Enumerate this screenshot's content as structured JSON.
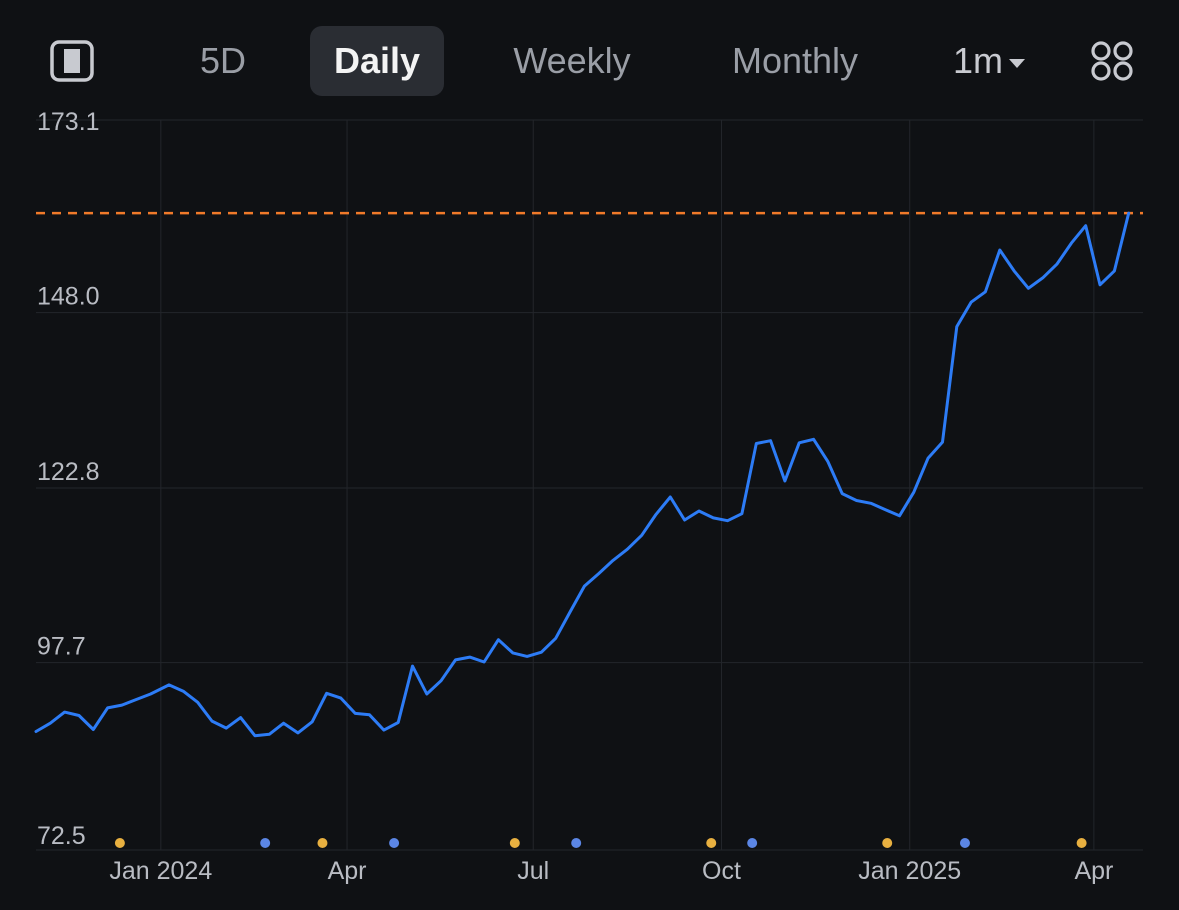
{
  "toolbar": {
    "panel_icon": "split-panel-icon",
    "tabs": [
      {
        "label": "5D",
        "active": false
      },
      {
        "label": "Daily",
        "active": true
      },
      {
        "label": "Weekly",
        "active": false
      },
      {
        "label": "Monthly",
        "active": false
      }
    ],
    "range": {
      "label": "1m"
    },
    "grid_icon": "four-circles-grid-icon"
  },
  "colors": {
    "background": "#0f1114",
    "line": "#2d7cf6",
    "reference_line": "#f07a2a",
    "grid": "#23262b",
    "dividend_dot": "#e8b040",
    "earnings_dot": "#5b86e5"
  },
  "chart_data": {
    "type": "line",
    "title": "",
    "xlabel": "",
    "ylabel": "",
    "x_ticks": [
      "Jan 2024",
      "Apr",
      "Jul",
      "Oct",
      "Jan 2025",
      "Apr"
    ],
    "x_tick_dates": [
      "2024-01-01",
      "2024-04-01",
      "2024-07-01",
      "2024-10-01",
      "2025-01-01",
      "2025-04-01"
    ],
    "xlim": [
      "2023-11-01",
      "2025-04-25"
    ],
    "y_ticks": [
      "173.1",
      "148.0",
      "122.8",
      "97.7",
      "72.5"
    ],
    "ylim": [
      72.5,
      173.1
    ],
    "grid": true,
    "reference_line": {
      "value": 162.3,
      "style": "dashed"
    },
    "series": [
      {
        "points": [
          [
            "2023-11-01",
            87.8
          ],
          [
            "2023-11-08",
            89.0
          ],
          [
            "2023-11-15",
            90.6
          ],
          [
            "2023-11-22",
            90.1
          ],
          [
            "2023-11-29",
            88.1
          ],
          [
            "2023-12-06",
            91.2
          ],
          [
            "2023-12-13",
            91.6
          ],
          [
            "2023-12-20",
            92.4
          ],
          [
            "2023-12-27",
            93.2
          ],
          [
            "2024-01-05",
            94.5
          ],
          [
            "2024-01-12",
            93.6
          ],
          [
            "2024-01-19",
            92.0
          ],
          [
            "2024-01-26",
            89.3
          ],
          [
            "2024-02-02",
            88.3
          ],
          [
            "2024-02-09",
            89.8
          ],
          [
            "2024-02-16",
            87.2
          ],
          [
            "2024-02-23",
            87.4
          ],
          [
            "2024-03-01",
            89.0
          ],
          [
            "2024-03-08",
            87.6
          ],
          [
            "2024-03-15",
            89.2
          ],
          [
            "2024-03-22",
            93.3
          ],
          [
            "2024-03-29",
            92.6
          ],
          [
            "2024-04-05",
            90.4
          ],
          [
            "2024-04-12",
            90.2
          ],
          [
            "2024-04-19",
            88.0
          ],
          [
            "2024-04-26",
            89.1
          ],
          [
            "2024-05-03",
            97.2
          ],
          [
            "2024-05-10",
            93.2
          ],
          [
            "2024-05-17",
            95.1
          ],
          [
            "2024-05-24",
            98.1
          ],
          [
            "2024-05-31",
            98.5
          ],
          [
            "2024-06-07",
            97.8
          ],
          [
            "2024-06-14",
            101.0
          ],
          [
            "2024-06-21",
            99.1
          ],
          [
            "2024-06-28",
            98.6
          ],
          [
            "2024-07-05",
            99.2
          ],
          [
            "2024-07-12",
            101.2
          ],
          [
            "2024-07-19",
            105.0
          ],
          [
            "2024-07-26",
            108.7
          ],
          [
            "2024-08-02",
            110.5
          ],
          [
            "2024-08-09",
            112.4
          ],
          [
            "2024-08-16",
            114.0
          ],
          [
            "2024-08-23",
            116.0
          ],
          [
            "2024-08-30",
            119.0
          ],
          [
            "2024-09-06",
            121.5
          ],
          [
            "2024-09-13",
            118.2
          ],
          [
            "2024-09-20",
            119.5
          ],
          [
            "2024-09-27",
            118.5
          ],
          [
            "2024-10-04",
            118.1
          ],
          [
            "2024-10-11",
            119.1
          ],
          [
            "2024-10-18",
            129.2
          ],
          [
            "2024-10-25",
            129.6
          ],
          [
            "2024-11-01",
            123.8
          ],
          [
            "2024-11-08",
            129.3
          ],
          [
            "2024-11-15",
            129.8
          ],
          [
            "2024-11-22",
            126.6
          ],
          [
            "2024-11-29",
            122.0
          ],
          [
            "2024-12-06",
            121.0
          ],
          [
            "2024-12-13",
            120.6
          ],
          [
            "2024-12-20",
            119.7
          ],
          [
            "2024-12-27",
            118.8
          ],
          [
            "2025-01-03",
            122.2
          ],
          [
            "2025-01-10",
            127.1
          ],
          [
            "2025-01-17",
            129.4
          ],
          [
            "2025-01-24",
            146.0
          ],
          [
            "2025-01-31",
            149.5
          ],
          [
            "2025-02-07",
            151.0
          ],
          [
            "2025-02-14",
            157.0
          ],
          [
            "2025-02-21",
            154.0
          ],
          [
            "2025-02-28",
            151.5
          ],
          [
            "2025-03-07",
            153.0
          ],
          [
            "2025-03-14",
            155.0
          ],
          [
            "2025-03-21",
            158.0
          ],
          [
            "2025-03-28",
            160.5
          ],
          [
            "2025-04-04",
            152.0
          ],
          [
            "2025-04-11",
            154.0
          ],
          [
            "2025-04-18",
            162.3
          ]
        ]
      }
    ],
    "event_markers": [
      {
        "date": "2023-12-12",
        "kind": "dividend"
      },
      {
        "date": "2024-02-21",
        "kind": "earnings"
      },
      {
        "date": "2024-03-20",
        "kind": "dividend"
      },
      {
        "date": "2024-04-24",
        "kind": "earnings"
      },
      {
        "date": "2024-06-22",
        "kind": "dividend"
      },
      {
        "date": "2024-07-22",
        "kind": "earnings"
      },
      {
        "date": "2024-09-26",
        "kind": "dividend"
      },
      {
        "date": "2024-10-16",
        "kind": "earnings"
      },
      {
        "date": "2024-12-21",
        "kind": "dividend"
      },
      {
        "date": "2025-01-28",
        "kind": "earnings"
      },
      {
        "date": "2025-03-26",
        "kind": "dividend"
      }
    ]
  }
}
